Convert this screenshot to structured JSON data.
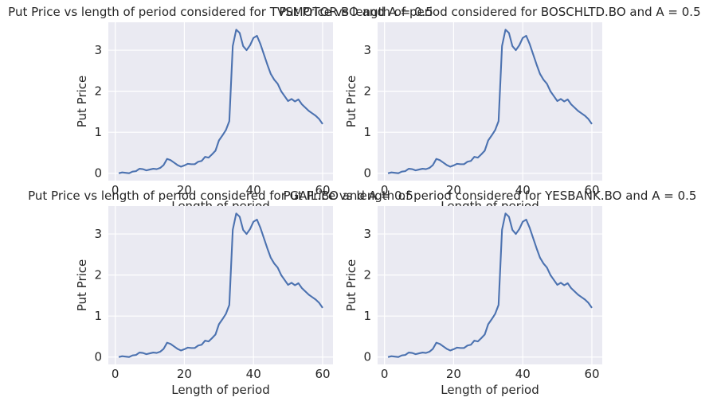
{
  "chart_data": [
    {
      "type": "line",
      "title": "Put Price vs length of period considered for TVSMOTOR.BO and A = 0.5",
      "xlabel": "Length of period",
      "ylabel": "Put Price",
      "xlim": [
        -2,
        63
      ],
      "ylim": [
        -0.18,
        3.68
      ],
      "xticks": [
        0,
        20,
        40,
        60
      ],
      "yticks": [
        0,
        1,
        2,
        3
      ],
      "grid": true,
      "series": [
        {
          "color": "#4c72b0",
          "x": [],
          "y": []
        }
      ]
    },
    {
      "type": "line",
      "title": "Put Price vs length of period considered for BOSCHLTD.BO and A = 0.5",
      "xlabel": "Length of period",
      "ylabel": "Put Price",
      "xlim": [
        -2,
        63
      ],
      "ylim": [
        -0.18,
        3.68
      ],
      "xticks": [
        0,
        20,
        40,
        60
      ],
      "yticks": [
        0,
        1,
        2,
        3
      ],
      "grid": true,
      "series": [
        {
          "color": "#4c72b0",
          "x": [],
          "y": []
        }
      ]
    },
    {
      "type": "line",
      "title": "Put Price vs length of period considered for GAIL.BO and A = 0.5",
      "xlabel": "Length of period",
      "ylabel": "Put Price",
      "xlim": [
        -2,
        63
      ],
      "ylim": [
        -0.18,
        3.68
      ],
      "xticks": [
        0,
        20,
        40,
        60
      ],
      "yticks": [
        0,
        1,
        2,
        3
      ],
      "grid": true,
      "series": [
        {
          "color": "#4c72b0",
          "x": [],
          "y": []
        }
      ]
    },
    {
      "type": "line",
      "title": "Put Price vs length of period considered for YESBANK.BO and A = 0.5",
      "xlabel": "Length of period",
      "ylabel": "Put Price",
      "xlim": [
        -2,
        63
      ],
      "ylim": [
        -0.18,
        3.68
      ],
      "xticks": [
        0,
        20,
        40,
        60
      ],
      "yticks": [
        0,
        1,
        2,
        3
      ],
      "grid": true,
      "series": [
        {
          "color": "#4c72b0",
          "x": [],
          "y": []
        }
      ]
    }
  ],
  "shared_series": {
    "x": [
      1,
      2,
      3,
      4,
      5,
      6,
      7,
      8,
      9,
      10,
      11,
      12,
      13,
      14,
      15,
      16,
      17,
      18,
      19,
      20,
      21,
      22,
      23,
      24,
      25,
      26,
      27,
      28,
      29,
      30,
      31,
      32,
      33,
      34,
      35,
      36,
      37,
      38,
      39,
      40,
      41,
      42,
      43,
      44,
      45,
      46,
      47,
      48,
      49,
      50,
      51,
      52,
      53,
      54,
      55,
      56,
      57,
      58,
      59,
      60
    ],
    "y": [
      0.0,
      0.02,
      0.01,
      0.0,
      0.04,
      0.05,
      0.11,
      0.1,
      0.07,
      0.09,
      0.11,
      0.1,
      0.13,
      0.2,
      0.35,
      0.32,
      0.26,
      0.2,
      0.16,
      0.19,
      0.23,
      0.22,
      0.22,
      0.28,
      0.3,
      0.4,
      0.38,
      0.46,
      0.55,
      0.8,
      0.92,
      1.05,
      1.27,
      3.1,
      3.5,
      3.42,
      3.1,
      3.0,
      3.12,
      3.3,
      3.35,
      3.15,
      2.9,
      2.65,
      2.42,
      2.28,
      2.18,
      2.0,
      1.88,
      1.76,
      1.81,
      1.75,
      1.8,
      1.68,
      1.6,
      1.52,
      1.46,
      1.4,
      1.32,
      1.2
    ]
  }
}
